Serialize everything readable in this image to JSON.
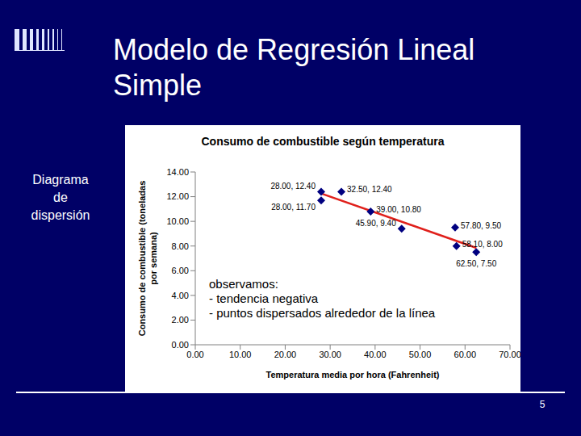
{
  "slide": {
    "title": "Modelo de Regresión Lineal Simple",
    "side_label": "Diagrama de dispersión",
    "page_number": "5"
  },
  "chart_data": {
    "type": "scatter",
    "title": "Consumo de combustible según temperatura",
    "x_label": "Temperatura media por hora (Fahrenheit)",
    "y_label": "Consumo de combustible (toneladas por semana)",
    "annotation": [
      "observamos:",
      "- tendencia negativa",
      "- puntos dispersados alrededor de la línea"
    ],
    "x": [
      28.0,
      28.0,
      32.5,
      39.0,
      45.9,
      57.8,
      58.1,
      62.5
    ],
    "values": [
      12.4,
      11.7,
      12.4,
      10.8,
      9.4,
      9.5,
      8.0,
      7.5
    ],
    "value_labels": [
      "28.00, 12.40",
      "28.00, 11.70",
      "32.50, 12.40",
      "39.00, 10.80",
      "45.90, 9.40",
      "57.80, 9.50",
      "58.10, 8.00",
      "62.50, 7.50"
    ],
    "color": "#000080",
    "marker": "diamond",
    "data_labels": true,
    "trendline": {
      "x": [
        28.0,
        62.5
      ],
      "values": [
        12.26,
        7.85
      ],
      "color": "#e0201b",
      "line_style": "solid"
    },
    "xlim": [
      0,
      70
    ],
    "xticks": [
      {
        "value": 0,
        "label": "0.00"
      },
      {
        "value": 10,
        "label": "10.00"
      },
      {
        "value": 20,
        "label": "20.00"
      },
      {
        "value": 30,
        "label": "30.00"
      },
      {
        "value": 40,
        "label": "40.00"
      },
      {
        "value": 50,
        "label": "50.00"
      },
      {
        "value": 60,
        "label": "60.00"
      },
      {
        "value": 70,
        "label": "70.00"
      }
    ],
    "ylim": [
      0,
      14
    ],
    "yticks": [
      {
        "value": 0,
        "label": "0.00"
      },
      {
        "value": 2,
        "label": "2.00"
      },
      {
        "value": 4,
        "label": "4.00"
      },
      {
        "value": 6,
        "label": "6.00"
      },
      {
        "value": 8,
        "label": "8.00"
      },
      {
        "value": 10,
        "label": "10.00"
      },
      {
        "value": 12,
        "label": "12.00"
      },
      {
        "value": 14,
        "label": "14.00"
      }
    ],
    "grid": false
  }
}
